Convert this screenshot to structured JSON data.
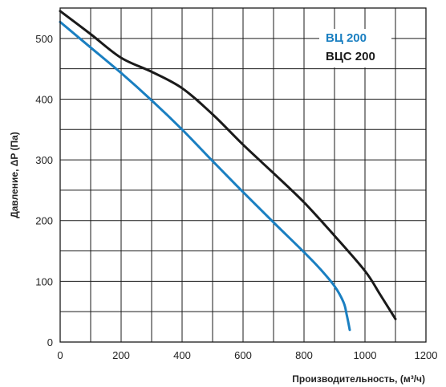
{
  "chart_data": {
    "type": "line",
    "title": "",
    "xlabel": "Производительность, (м³/ч)",
    "ylabel": "Давление, ΔP (Па)",
    "xlim": [
      0,
      1200
    ],
    "ylim": [
      0,
      550
    ],
    "x_ticks": [
      "0",
      "200",
      "400",
      "600",
      "800",
      "1000",
      "1200"
    ],
    "y_ticks": [
      "0",
      "100",
      "200",
      "300",
      "400",
      "500"
    ],
    "grid": true,
    "legend_position": "top-right",
    "series": [
      {
        "name": "ВЦ 200",
        "color": "#1a7fc1",
        "x": [
          0,
          100,
          200,
          300,
          400,
          500,
          600,
          700,
          800,
          850,
          900,
          930,
          940,
          950
        ],
        "y": [
          527,
          485,
          443,
          398,
          350,
          298,
          247,
          197,
          148,
          122,
          92,
          65,
          45,
          20
        ]
      },
      {
        "name": "ВЦС 200",
        "color": "#1a1a1a",
        "x": [
          0,
          100,
          200,
          300,
          400,
          500,
          600,
          700,
          800,
          900,
          1000,
          1050,
          1100
        ],
        "y": [
          545,
          507,
          468,
          445,
          418,
          375,
          325,
          278,
          230,
          175,
          117,
          78,
          38
        ]
      }
    ]
  }
}
